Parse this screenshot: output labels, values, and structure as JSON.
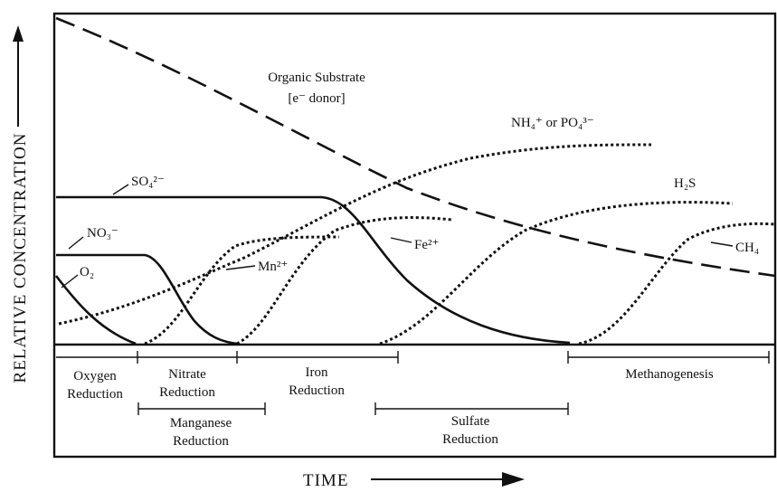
{
  "axes": {
    "y_label": "RELATIVE CONCENTRATION",
    "x_label": "TIME"
  },
  "curve_labels": {
    "organic": [
      "Organic Substrate",
      "[e⁻ donor]"
    ],
    "nutrients": "NH₄⁺  or  PO₄³⁻",
    "sulfate": "SO₄²⁻",
    "nitrate": "NO₃⁻",
    "oxygen": "O₂",
    "manganese": "Mn²⁺",
    "iron": "Fe²⁺",
    "sulfide": "H₂S",
    "methane": "CH₄"
  },
  "zones": [
    {
      "lines": [
        "Oxygen",
        "Reduction"
      ]
    },
    {
      "lines": [
        "Nitrate",
        "Reduction"
      ]
    },
    {
      "lines": [
        "Iron",
        "Reduction"
      ]
    },
    {
      "lines": [
        "Methanogenesis"
      ]
    },
    {
      "lines": [
        "Manganese",
        "Reduction"
      ]
    },
    {
      "lines": [
        "Sulfate",
        "Reduction"
      ]
    }
  ]
}
